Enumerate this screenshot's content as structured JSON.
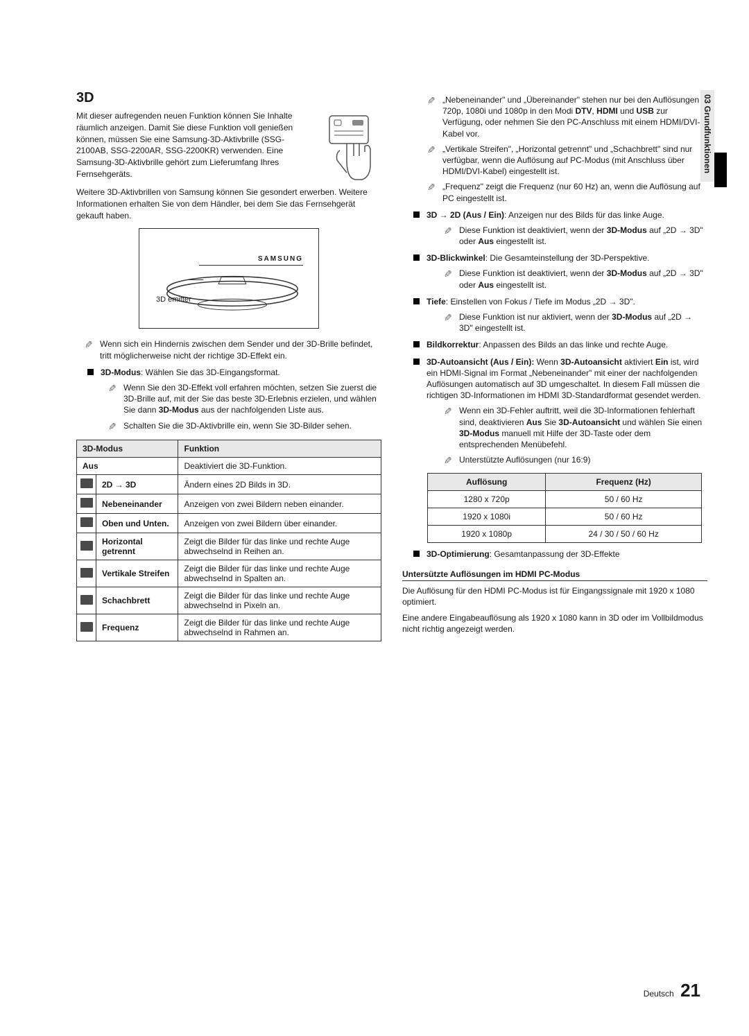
{
  "side_tab": "03  Grundfunktionen",
  "heading": "3D",
  "intro1": "Mit dieser aufregenden neuen Funktion können Sie Inhalte räumlich anzeigen. Damit Sie diese Funktion voll genießen können, müssen Sie eine Samsung-3D-Aktivbrille (SSG-2100AB, SSG-2200AR, SSG-2200KR) verwenden. Eine Samsung-3D-Aktivbrille gehört zum Lieferumfang Ihres Fernsehgeräts.",
  "intro2": "Weitere 3D-Aktivbrillen von Samsung können Sie gesondert erwerben. Weitere Informationen erhalten Sie von dem Händler, bei dem Sie das Fernsehgerät gekauft haben.",
  "diagram": {
    "emitter": "3D emitter",
    "brand": "SAMSUNG"
  },
  "note_obstacle": "Wenn sich ein Hindernis zwischen dem Sender und der 3D-Brille befindet, tritt möglicherweise nicht der richtige 3D-Effekt ein.",
  "bullet_mode_label": "3D-Modus",
  "bullet_mode_text": ": Wählen Sie das 3D-Eingangsformat.",
  "mode_note1_a": "Wenn Sie den 3D-Effekt voll erfahren möchten, setzen Sie zuerst die 3D-Brille auf, mit der Sie das beste 3D-Erlebnis erzielen, und wählen Sie dann ",
  "mode_note1_b": "3D-Modus",
  "mode_note1_c": " aus der nachfolgenden Liste aus.",
  "mode_note2": "Schalten Sie die 3D-Aktivbrille ein, wenn Sie 3D-Bilder sehen.",
  "modes_table": {
    "h1": "3D-Modus",
    "h2": "Funktion",
    "rows": [
      {
        "has_icon": false,
        "mode": "Aus",
        "func": "Deaktiviert die 3D-Funktion."
      },
      {
        "has_icon": true,
        "mode": "2D → 3D",
        "func": "Ändern eines 2D Bilds in 3D."
      },
      {
        "has_icon": true,
        "mode": "Nebeneinander",
        "func": "Anzeigen von zwei Bildern neben einander."
      },
      {
        "has_icon": true,
        "mode": "Oben und Unten.",
        "func": "Anzeigen von zwei Bildern über einander."
      },
      {
        "has_icon": true,
        "mode": "Horizontal getrennt",
        "func": "Zeigt die Bilder für das linke und rechte Auge abwechselnd in Reihen an."
      },
      {
        "has_icon": true,
        "mode": "Vertikale Streifen",
        "func": "Zeigt die Bilder für das linke und rechte Auge abwechselnd in Spalten an."
      },
      {
        "has_icon": true,
        "mode": "Schachbrett",
        "func": "Zeigt die Bilder für das linke und rechte Auge abwechselnd in Pixeln an."
      },
      {
        "has_icon": true,
        "mode": "Frequenz",
        "func": "Zeigt die Bilder für das linke und rechte Auge abwechselnd in Rahmen an."
      }
    ]
  },
  "right": {
    "n1_a": "„Nebeneinander\" und „Übereinander\" stehen nur bei den Auflösungen 720p, 1080i und 1080p in den Modi ",
    "n1_b": "DTV",
    "n1_c": ", ",
    "n1_d": "HDMI",
    "n1_e": " und ",
    "n1_f": "USB",
    "n1_g": " zur Verfügung, oder nehmen Sie den PC-Anschluss mit einem HDMI/DVI-Kabel vor.",
    "n2": "„Vertikale Streifen\", „Horizontal getrennt\" und „Schachbrett\" sind nur verfügbar, wenn die Auflösung auf PC-Modus (mit Anschluss über HDMI/DVI-Kabel) eingestellt ist.",
    "n3": "„Frequenz\" zeigt die Frequenz (nur 60 Hz) an, wenn die Auflösung auf PC eingestellt ist.",
    "b1_a": "3D → 2D (Aus / Ein)",
    "b1_b": ": Anzeigen nur des Bilds für das linke Auge.",
    "b1_note_a": "Diese Funktion ist deaktiviert, wenn der ",
    "b1_note_b": "3D-Modus",
    "b1_note_c": " auf „2D → 3D\" oder ",
    "b1_note_d": "Aus",
    "b1_note_e": " eingestellt ist.",
    "b2_a": "3D-Blickwinkel",
    "b2_b": ": Die Gesamteinstellung der 3D-Perspektive.",
    "b3_a": "Tiefe",
    "b3_b": ": Einstellen von Fokus / Tiefe im Modus „2D → 3D\".",
    "b3_note_a": "Diese Funktion ist nur aktiviert, wenn der ",
    "b3_note_b": "3D-Modus",
    "b3_note_c": " auf „2D → 3D\" eingestellt ist.",
    "b4_a": "Bildkorrektur",
    "b4_b": ": Anpassen des Bilds an das linke und rechte Auge.",
    "b5_a": "3D-Autoansicht (Aus / Ein):",
    "b5_b": " Wenn ",
    "b5_c": "3D-Autoansicht",
    "b5_d": " aktiviert ",
    "b5_e": "Ein",
    "b5_f": " ist, wird ein HDMI-Signal im Format „Nebeneinander\" mit einer der nachfolgenden Auflösungen automatisch auf 3D umgeschaltet. In diesem Fall müssen die richtigen 3D-Informationen im HDMI 3D-Standardformat gesendet werden.",
    "b5_note1_a": "Wenn ein 3D-Fehler auftritt, weil die 3D-Informationen fehlerhaft sind, deaktivieren ",
    "b5_note1_b": "Aus",
    "b5_note1_c": " Sie ",
    "b5_note1_d": "3D-Autoansicht",
    "b5_note1_e": " und wählen Sie einen ",
    "b5_note1_f": "3D-Modus",
    "b5_note1_g": " manuell mit Hilfe der 3D-Taste oder dem entsprechenden Menübefehl.",
    "b5_note2": "Unterstützte Auflösungen (nur 16:9)",
    "b6_a": "3D-Optimierung",
    "b6_b": ": Gesamtanpassung der 3D-Effekte"
  },
  "res_table": {
    "h1": "Auflösung",
    "h2": "Frequenz (Hz)",
    "rows": [
      {
        "r": "1280 x 720p",
        "f": "50 / 60 Hz"
      },
      {
        "r": "1920 x 1080i",
        "f": "50 / 60 Hz"
      },
      {
        "r": "1920 x 1080p",
        "f": "24 / 30 / 50 / 60 Hz"
      }
    ]
  },
  "pc_section": {
    "head": "Untersützte Auflösungen im HDMI PC-Modus",
    "p1": "Die Auflösung für den HDMI PC-Modus ist für Eingangssignale mit 1920 x 1080 optimiert.",
    "p2": "Eine andere Eingabeauflösung als 1920 x 1080 kann in 3D oder im Vollbildmodus nicht richtig angezeigt werden."
  },
  "footer": {
    "lang": "Deutsch",
    "page": "21"
  }
}
